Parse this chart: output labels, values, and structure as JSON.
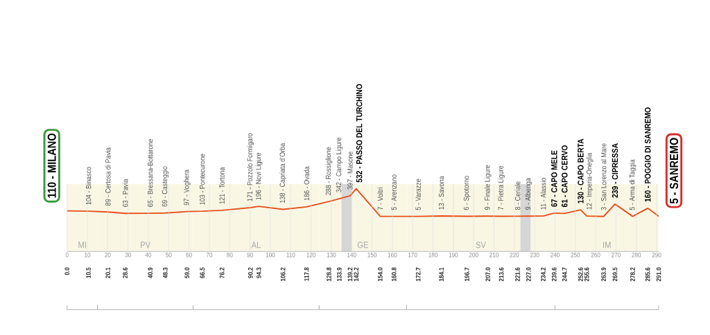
{
  "chart_data": {
    "type": "line",
    "x": [
      0.0,
      10.5,
      20.1,
      28.6,
      40.9,
      48.3,
      59.0,
      66.5,
      76.2,
      90.2,
      94.3,
      106.2,
      117.8,
      128.8,
      133.9,
      139.2,
      142.2,
      154.0,
      160.8,
      172.7,
      184.1,
      196.7,
      207.0,
      213.6,
      221.6,
      227.0,
      234.2,
      239.6,
      244.7,
      252.6,
      255.6,
      263.9,
      269.5,
      278.2,
      285.6,
      291.0
    ],
    "values": [
      110,
      104,
      89,
      63,
      65,
      69,
      97,
      103,
      121,
      171,
      196,
      138,
      186,
      288,
      342,
      397,
      532,
      7,
      5,
      5,
      13,
      6,
      9,
      7,
      8,
      9,
      11,
      67,
      61,
      130,
      12,
      3,
      239,
      5,
      160,
      5
    ],
    "value_labels": [
      "110 - MILANO",
      "104 - Binasco",
      "89 - Certosa di Pavia",
      "63 - Pavia",
      "65 - Bressana-Bottarone",
      "69 - Casteggio",
      "97 - Voghera",
      "103 - Pontecurone",
      "121 - Tortona",
      "171 - Pozzolo Formigaro",
      "196 - Novi Ligure",
      "138 - Capriata d'Orba",
      "186 - Ovada",
      "288 - Rossiglione",
      "342 - Campo Ligure",
      "397 - Masone",
      "532 - PASSO DEL TURCHINO",
      "7 - Voltri",
      "5 - Arenzano",
      "5 - Varazze",
      "13 - Savona",
      "6 - Spotorno",
      "9 - Finale Ligure",
      "7 - Pietra Ligure",
      "8 - Ceriale",
      "9 - Albenga",
      "11 - Alassio",
      "67 - CAPO MELE",
      "61 - CAPO CERVO",
      "130 - CAPO BERTA",
      "12 - Imperia-Oneglia",
      "3 - San Lorenzo al Mare",
      "239 - CIPRESSA",
      "5 - Arma di Taggia",
      "160 - POGGIO DI SANREMO",
      "5 - SANREMO"
    ],
    "color": "#e84e1b",
    "xlim": [
      0,
      291
    ],
    "xticks": [
      0,
      10,
      20,
      30,
      40,
      50,
      60,
      70,
      80,
      90,
      100,
      110,
      120,
      130,
      140,
      150,
      160,
      170,
      180,
      190,
      200,
      210,
      220,
      230,
      240,
      250,
      260,
      270,
      280,
      290
    ],
    "x2lim": [
      0,
      291
    ],
    "x2ticks": [
      {
        "value": 0,
        "label": "0.0"
      },
      10.5,
      20.1,
      28.6,
      40.9,
      48.3,
      {
        "value": 59,
        "label": "59.0"
      },
      66.5,
      76.2,
      90.2,
      94.3,
      106.2,
      117.8,
      128.8,
      133.9,
      139.2,
      142.2,
      {
        "value": 154,
        "label": "154.0"
      },
      160.8,
      172.7,
      184.1,
      196.7,
      {
        "value": 207,
        "label": "207.0"
      },
      213.6,
      221.6,
      {
        "value": 227,
        "label": "227.0"
      },
      234.2,
      239.6,
      244.7,
      252.6,
      255.6,
      263.9,
      269.5,
      278.2,
      285.6,
      {
        "value": 291,
        "label": "291.0"
      }
    ],
    "grid": "x",
    "tick_labels": "x",
    "bands": [
      {
        "axis": "x",
        "from": 0,
        "to": 15,
        "label": "MI",
        "color": "#f9f7e4"
      },
      {
        "axis": "x",
        "from": 15,
        "to": 62,
        "label": "PV",
        "color": "#f9f7e4"
      },
      {
        "axis": "x",
        "from": 62,
        "to": 124,
        "label": "AL",
        "color": "#f9f7e4"
      },
      {
        "axis": "x",
        "from": 124,
        "to": 167,
        "label": "GE",
        "color": "#f9f7e4"
      },
      {
        "axis": "x",
        "from": 167,
        "to": 240,
        "label": "SV",
        "color": "#f9f7e4"
      },
      {
        "axis": "x",
        "from": 240,
        "to": 291,
        "label": "IM",
        "color": "#f9f7e4"
      },
      {
        "axis": "x",
        "from": 135,
        "to": 140,
        "color": "#d6d6d6"
      },
      {
        "axis": "x",
        "from": 223,
        "to": 228,
        "color": "#d6d6d6"
      }
    ]
  }
}
